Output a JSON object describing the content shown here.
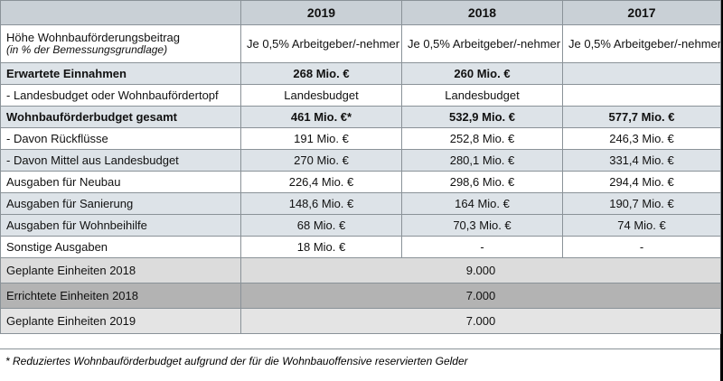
{
  "columns": [
    "2019",
    "2018",
    "2017"
  ],
  "rows": [
    {
      "label": "Höhe Wohnbauförderungsbeitrag",
      "sublabel": "(in % der Bemessungsgrundlage)",
      "values": [
        "Je 0,5% Arbeitgeber/-nehmer",
        "Je 0,5% Arbeitgeber/-nehmer",
        "Je 0,5% Arbeitgeber/-nehmer"
      ]
    },
    {
      "label": "Erwartete Einnahmen",
      "values": [
        "268 Mio. €",
        "260 Mio. €",
        ""
      ]
    },
    {
      "label": "- Landesbudget oder Wohnbaufördertopf",
      "values": [
        "Landesbudget",
        "Landesbudget",
        ""
      ]
    },
    {
      "label": "Wohnbauförderbudget gesamt",
      "values": [
        "461 Mio. €*",
        "532,9 Mio. €",
        "577,7 Mio. €"
      ]
    },
    {
      "label": "- Davon Rückflüsse",
      "values": [
        "191 Mio. €",
        "252,8 Mio. €",
        "246,3 Mio. €"
      ]
    },
    {
      "label": "- Davon Mittel aus Landesbudget",
      "values": [
        "270 Mio. €",
        "280,1 Mio. €",
        "331,4 Mio. €"
      ]
    },
    {
      "label": "Ausgaben für Neubau",
      "values": [
        "226,4 Mio. €",
        "298,6 Mio. €",
        "294,4 Mio. €"
      ]
    },
    {
      "label": "Ausgaben für Sanierung",
      "values": [
        "148,6 Mio. €",
        "164 Mio. €",
        "190,7 Mio. €"
      ]
    },
    {
      "label": "Ausgaben für Wohnbeihilfe",
      "values": [
        "68 Mio. €",
        "70,3 Mio. €",
        "74 Mio. €"
      ]
    },
    {
      "label": "Sonstige Ausgaben",
      "values": [
        "18 Mio. €",
        "-",
        "-"
      ]
    }
  ],
  "units": [
    {
      "label": "Geplante Einheiten 2018",
      "value": "9.000"
    },
    {
      "label": "Errichtete Einheiten 2018",
      "value": "7.000"
    },
    {
      "label": "Geplante Einheiten 2019",
      "value": "7.000"
    }
  ],
  "footnote": "* Reduziertes Wohnbauförderbudget aufgrund der für die Wohnbauoffensive reservierten Gelder"
}
